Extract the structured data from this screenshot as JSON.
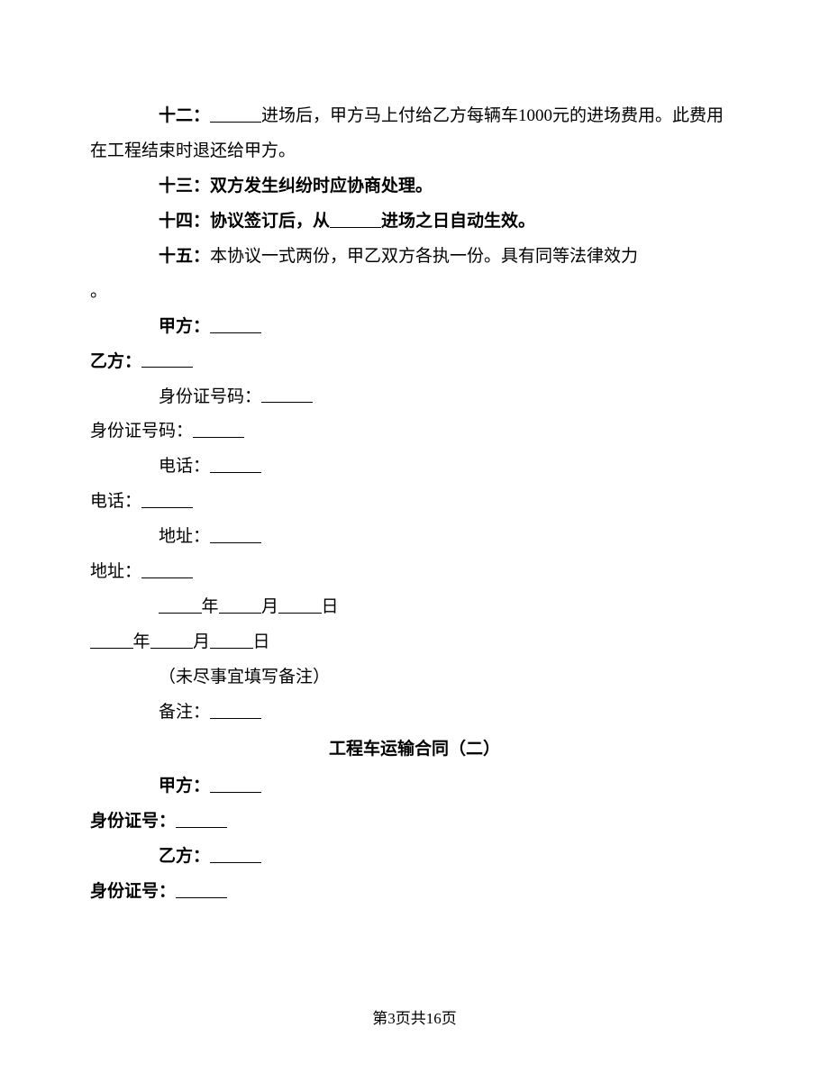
{
  "clause12": {
    "label": "十二：",
    "text_before": "进场后，甲方马上付给乙方每辆车1000元的进场费用。此费用在工程结束时退还给甲方。"
  },
  "clause13": {
    "label": "十三：",
    "text": "双方发生纠纷时应协商处理。"
  },
  "clause14": {
    "label": "十四：",
    "text_before": "协议签订后，从",
    "text_after": "进场之日自动生效。"
  },
  "clause15": {
    "label": "十五：",
    "text": "本协议一式两份，甲乙双方各执一份。具有同等法律效力"
  },
  "period": "。",
  "party_a_label": "甲方：",
  "party_b_label": "乙方：",
  "id_number_label": "身份证号码：",
  "id_short_label": "身份证号：",
  "phone_label": "电话：",
  "address_label": "地址：",
  "year_label": "年",
  "month_label": "月",
  "day_label": "日",
  "remarks_note": "（未尽事宜填写备注）",
  "remarks_label": "备注：",
  "section2_title": "工程车运输合同（二）",
  "footer_text": "第3页共16页"
}
